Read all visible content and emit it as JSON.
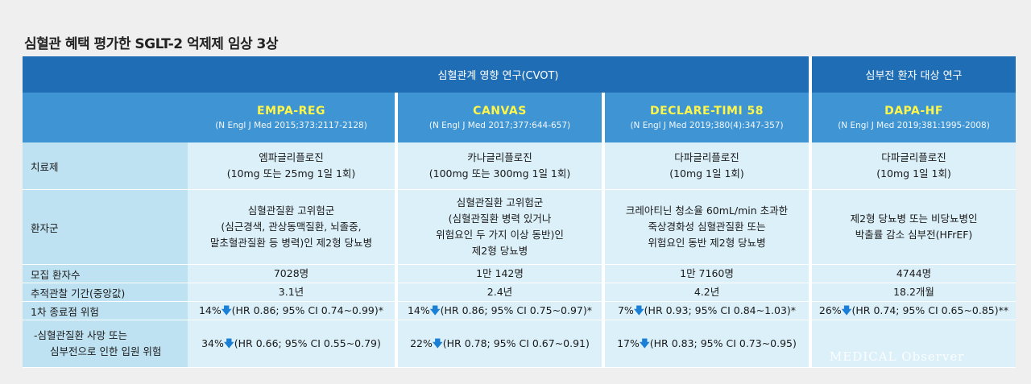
{
  "title": "심혈관 혜택 평가한 SGLT-2 억제제 임상 3상",
  "groups": {
    "cvot": "심혈관계 영향 연구(CVOT)",
    "hf": "심부전 환자 대상 연구"
  },
  "trials": [
    {
      "name": "EMPA-REG",
      "ref": "(N Engl J Med 2015;373:2117-2128)"
    },
    {
      "name": "CANVAS",
      "ref": "(N Engl J Med 2017;377:644-657)"
    },
    {
      "name": "DECLARE-TIMI 58",
      "ref": "(N Engl J Med 2019;380(4):347-357)"
    },
    {
      "name": "DAPA-HF",
      "ref": "(N Engl J Med 2019;381:1995-2008)"
    }
  ],
  "rows": {
    "drug": {
      "label": "치료제",
      "values": [
        [
          "엠파글리플로진",
          "(10mg 또는 25mg 1일 1회)"
        ],
        [
          "카나글리플로진",
          "(100mg 또는 300mg 1일 1회)"
        ],
        [
          "다파글리플로진",
          "(10mg 1일 1회)"
        ],
        [
          "다파글리플로진",
          "(10mg 1일 1회)"
        ]
      ]
    },
    "population": {
      "label": "환자군",
      "values": [
        [
          "심혈관질환 고위험군",
          "(심근경색, 관상동맥질환, 뇌졸중,",
          "말초혈관질환 등 병력)인 제2형 당뇨병"
        ],
        [
          "심혈관질환 고위험군",
          "(심혈관질환 병력 있거나",
          "위험요인 두 가지 이상 동반)인",
          "제2형 당뇨병"
        ],
        [
          "크레아티닌 청소율 60mL/min 초과한",
          "죽상경화성 심혈관질환 또는",
          "위험요인 동반 제2형 당뇨병"
        ],
        [
          "제2형 당뇨병 또는 비당뇨병인",
          "박출률 감소 심부전(HFrEF)"
        ]
      ]
    },
    "enrolled": {
      "label": "모집 환자수",
      "values": [
        "7028명",
        "1만 142명",
        "1만 7160명",
        "4744명"
      ]
    },
    "followup": {
      "label": "추적관찰 기간(중앙값)",
      "values": [
        "3.1년",
        "2.4년",
        "4.2년",
        "18.2개월"
      ]
    },
    "primary": {
      "label": "1차 종료점 위험",
      "values": [
        {
          "pct": "14%",
          "arrow": "🡇",
          "detail": "(HR 0.86; 95% CI 0.74~0.99)*"
        },
        {
          "pct": "14%",
          "arrow": "🡇",
          "detail": "(HR 0.86; 95% CI 0.75~0.97)*"
        },
        {
          "pct": "7%",
          "arrow": "🡇",
          "detail": "(HR 0.93; 95% CI 0.84~1.03)*"
        },
        {
          "pct": "26%",
          "arrow": "🡇",
          "detail": "(HR 0.74; 95% CI 0.65~0.85)**"
        }
      ]
    },
    "secondary": {
      "label_line1": "-심혈관질환 사망 또는",
      "label_line2": "심부전으로 인한 입원 위험",
      "values": [
        {
          "pct": "34%",
          "arrow": "🡇",
          "detail": "(HR 0.66; 95% CI 0.55~0.79)"
        },
        {
          "pct": "22%",
          "arrow": "🡇",
          "detail": "(HR 0.78; 95% CI 0.67~0.91)"
        },
        {
          "pct": "17%",
          "arrow": "🡇",
          "detail": "(HR 0.83; 95% CI 0.73~0.95)"
        }
      ]
    }
  },
  "watermark": "MEDICAL Observer",
  "colors": {
    "header_dark": "#1f6eb5",
    "header_light": "#3f95d3",
    "trial_name": "#fff64a",
    "label_bg": "#bfe2f3",
    "cell_bg": "#dcf0f9",
    "arrow": "#1b7fd6"
  }
}
